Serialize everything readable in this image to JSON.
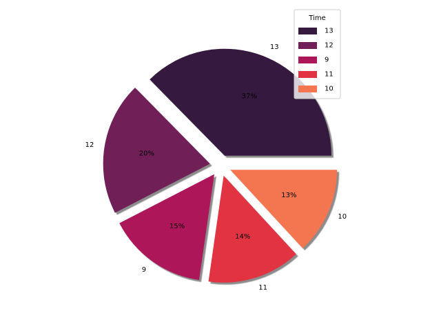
{
  "chart_data": {
    "type": "pie",
    "title": "",
    "categories": [
      "13",
      "12",
      "9",
      "11",
      "10"
    ],
    "values": [
      37,
      20,
      15,
      14,
      13
    ],
    "value_labels": [
      "37%",
      "20%",
      "15%",
      "14%",
      "13%"
    ],
    "colors": [
      "#35193e",
      "#701f57",
      "#ad1759",
      "#e13342",
      "#f37651"
    ],
    "exploded": true,
    "shadow": true,
    "start_angle_deg": 0,
    "direction": "counterclockwise",
    "legend": {
      "title": "Time",
      "position": "top-right",
      "entries": [
        "13",
        "12",
        "9",
        "11",
        "10"
      ]
    }
  }
}
